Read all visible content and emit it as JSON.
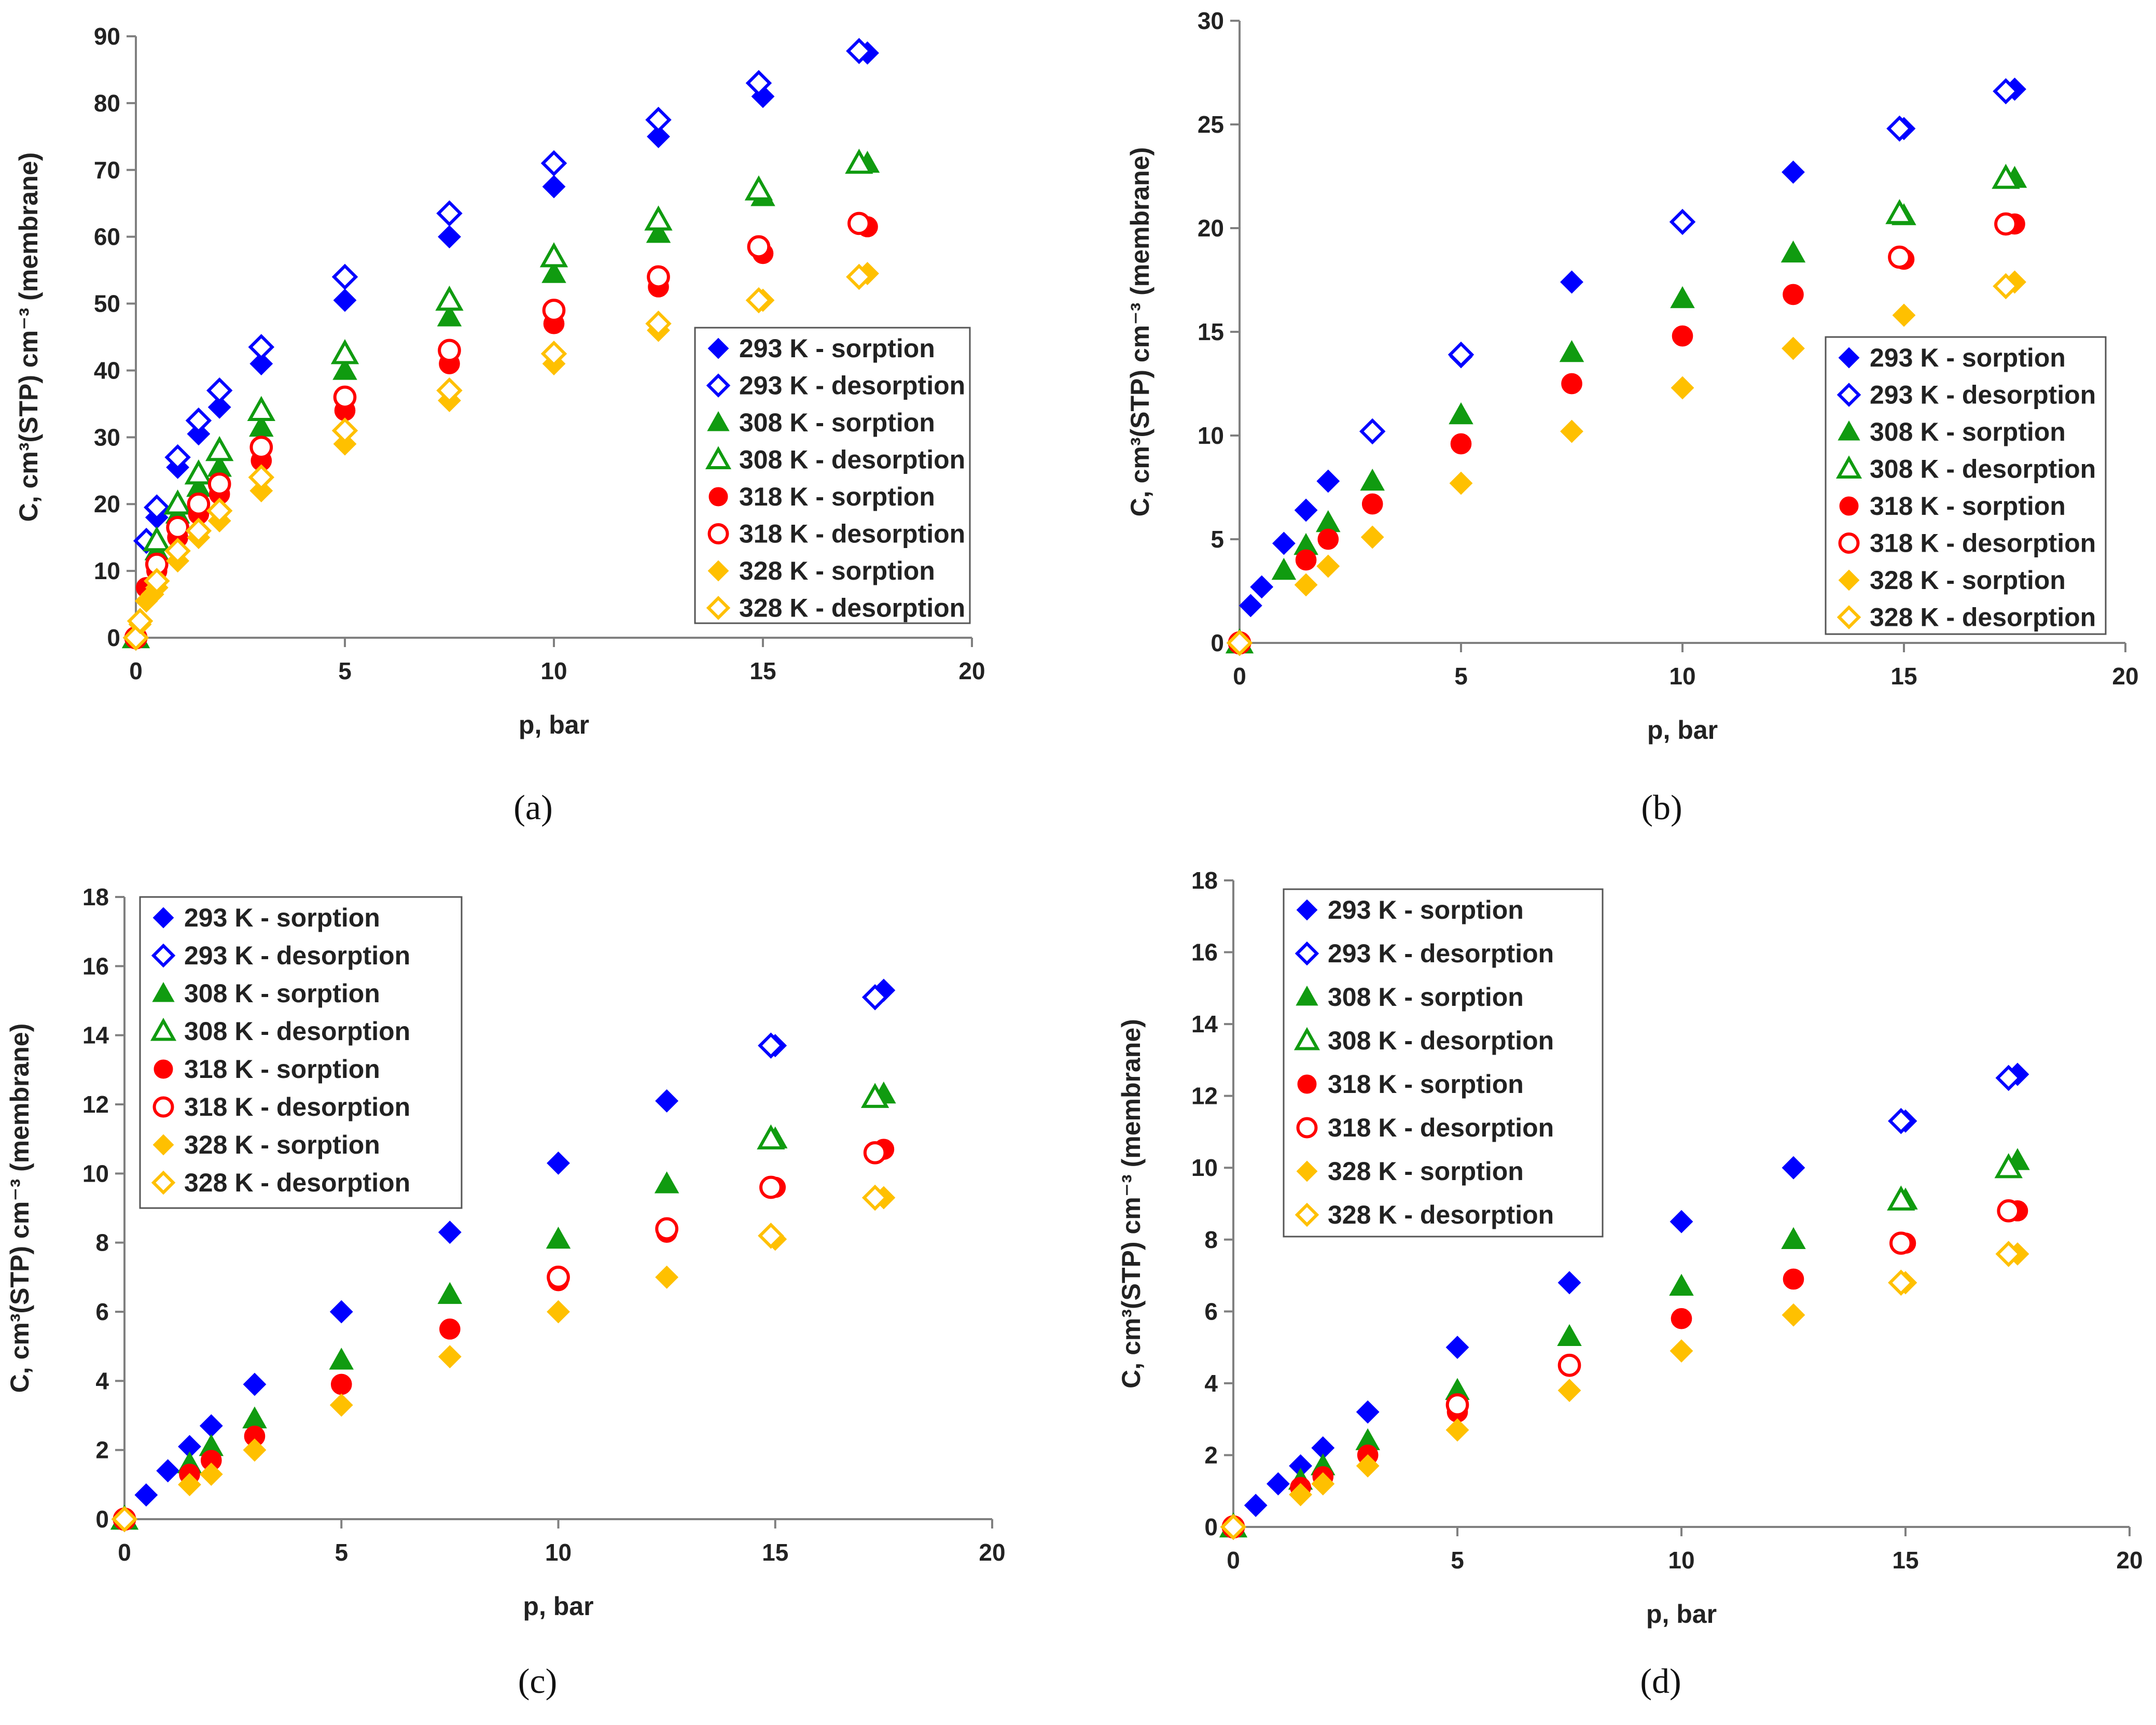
{
  "colors": {
    "293 K": "#0000ff",
    "308 K": "#109b10",
    "318 K": "#ff0000",
    "328 K": "#ffc000",
    "axis": "#808080",
    "text": "#222222"
  },
  "chart_data": [
    {
      "type": "scatter",
      "panel_label": "(a)",
      "xlabel": "p, bar",
      "ylabel": "C, cm³(STP) cm⁻³ (membrane)",
      "xlim": [
        0,
        20
      ],
      "ylim": [
        0,
        90
      ],
      "x_ticks": [
        "0",
        "5",
        "10",
        "15",
        "20"
      ],
      "y_ticks": [
        "0",
        "10",
        "20",
        "30",
        "40",
        "50",
        "60",
        "70",
        "80",
        "90"
      ],
      "legend_position": "right",
      "series": [
        {
          "name": "293 K - sorption",
          "temp": "293 K",
          "marker": "diamond",
          "filled": true,
          "x": [
            0,
            0.5,
            1,
            1.5,
            2,
            3,
            5,
            7.5,
            10,
            12.5,
            15,
            17.5
          ],
          "y": [
            0,
            18,
            25.5,
            30.5,
            34.5,
            41,
            50.5,
            60,
            67.5,
            75,
            81,
            87.5
          ]
        },
        {
          "name": "293 K - desorption",
          "temp": "293 K",
          "marker": "diamond",
          "filled": false,
          "x": [
            0,
            0.25,
            0.5,
            1,
            1.5,
            2,
            3,
            5,
            7.5,
            10,
            12.5,
            14.9,
            17.3
          ],
          "y": [
            0,
            14.5,
            19.5,
            27,
            32.5,
            37,
            43.5,
            54,
            63.5,
            71,
            77.5,
            83,
            87.8
          ]
        },
        {
          "name": "308 K - sorption",
          "temp": "308 K",
          "marker": "triangle",
          "filled": true,
          "x": [
            0,
            0.5,
            1,
            1.5,
            2,
            3,
            5,
            7.5,
            10,
            12.5,
            15,
            17.5
          ],
          "y": [
            0,
            13,
            18.5,
            22.5,
            25.5,
            31.5,
            40,
            48,
            54.5,
            60.5,
            66,
            71
          ]
        },
        {
          "name": "308 K - desorption",
          "temp": "308 K",
          "marker": "triangle",
          "filled": false,
          "x": [
            0,
            0.5,
            1,
            1.5,
            2,
            3,
            5,
            7.5,
            10,
            12.5,
            14.9,
            17.3
          ],
          "y": [
            0,
            14.5,
            20,
            24.5,
            28,
            34,
            42.5,
            50.5,
            57,
            62.5,
            67,
            71
          ]
        },
        {
          "name": "318 K - sorption",
          "temp": "318 K",
          "marker": "circle",
          "filled": true,
          "x": [
            0,
            0.25,
            0.5,
            1,
            1.5,
            2,
            3,
            5,
            7.5,
            10,
            12.5,
            15,
            17.5
          ],
          "y": [
            0,
            7.5,
            10,
            15,
            18.5,
            21.5,
            26.5,
            34,
            41,
            47,
            52.5,
            57.5,
            61.5
          ]
        },
        {
          "name": "318 K - desorption",
          "temp": "318 K",
          "marker": "circle",
          "filled": false,
          "x": [
            0,
            0.5,
            1,
            1.5,
            2,
            3,
            5,
            7.5,
            10,
            12.5,
            14.9,
            17.3
          ],
          "y": [
            0,
            11,
            16.5,
            20,
            23,
            28.5,
            36,
            43,
            49,
            54,
            58.5,
            62
          ]
        },
        {
          "name": "328 K - sorption",
          "temp": "328 K",
          "marker": "diamond",
          "filled": true,
          "x": [
            0,
            0.1,
            0.25,
            0.4,
            0.5,
            1,
            1.5,
            2,
            3,
            5,
            7.5,
            10,
            12.5,
            15,
            17.5
          ],
          "y": [
            0,
            2,
            5.5,
            6.5,
            7.5,
            11.5,
            15,
            17.5,
            22,
            29,
            35.5,
            41,
            46,
            50.5,
            54.5
          ]
        },
        {
          "name": "328 K - desorption",
          "temp": "328 K",
          "marker": "diamond",
          "filled": false,
          "x": [
            0,
            0.1,
            0.5,
            1,
            1.5,
            2,
            3,
            5,
            7.5,
            10,
            12.5,
            14.9,
            17.3
          ],
          "y": [
            0,
            2.5,
            8.5,
            13,
            16,
            19,
            24,
            31,
            37,
            42.5,
            47,
            50.5,
            54
          ]
        }
      ]
    },
    {
      "type": "scatter",
      "panel_label": "(b)",
      "xlabel": "p, bar",
      "ylabel": "C, cm³(STP) cm⁻³ (membrane)",
      "xlim": [
        0,
        20
      ],
      "ylim": [
        0,
        30
      ],
      "x_ticks": [
        "0",
        "5",
        "10",
        "15",
        "20"
      ],
      "y_ticks": [
        "0",
        "5",
        "10",
        "15",
        "20",
        "25",
        "30"
      ],
      "legend_position": "right",
      "series": [
        {
          "name": "293 K - sorption",
          "temp": "293 K",
          "marker": "diamond",
          "filled": true,
          "x": [
            0,
            0.25,
            0.5,
            1,
            1.5,
            2,
            3,
            5,
            7.5,
            10,
            12.5,
            15,
            17.5
          ],
          "y": [
            0,
            1.8,
            2.7,
            4.8,
            6.4,
            7.8,
            10.2,
            13.8,
            17.4,
            20.3,
            22.7,
            24.8,
            26.7
          ]
        },
        {
          "name": "293 K - desorption",
          "temp": "293 K",
          "marker": "diamond",
          "filled": false,
          "x": [
            0,
            3,
            5,
            10,
            14.9,
            17.3
          ],
          "y": [
            0,
            10.2,
            13.9,
            20.3,
            24.8,
            26.6
          ]
        },
        {
          "name": "308 K - sorption",
          "temp": "308 K",
          "marker": "triangle",
          "filled": true,
          "x": [
            0,
            1,
            1.5,
            2,
            3,
            5,
            7.5,
            10,
            12.5,
            15,
            17.5
          ],
          "y": [
            0,
            3.5,
            4.7,
            5.8,
            7.8,
            11,
            14,
            16.6,
            18.8,
            20.6,
            22.4
          ]
        },
        {
          "name": "308 K - desorption",
          "temp": "308 K",
          "marker": "triangle",
          "filled": false,
          "x": [
            0,
            14.9,
            17.3
          ],
          "y": [
            0,
            20.7,
            22.4
          ]
        },
        {
          "name": "318 K - sorption",
          "temp": "318 K",
          "marker": "circle",
          "filled": true,
          "x": [
            0,
            1.5,
            2,
            3,
            5,
            7.5,
            10,
            12.5,
            15,
            17.5
          ],
          "y": [
            0,
            4,
            5,
            6.7,
            9.6,
            12.5,
            14.8,
            16.8,
            18.5,
            20.2
          ]
        },
        {
          "name": "318 K - desorption",
          "temp": "318 K",
          "marker": "circle",
          "filled": false,
          "x": [
            0,
            14.9,
            17.3
          ],
          "y": [
            0,
            18.6,
            20.2
          ]
        },
        {
          "name": "328 K - sorption",
          "temp": "328 K",
          "marker": "diamond",
          "filled": true,
          "x": [
            0,
            1.5,
            2,
            3,
            5,
            7.5,
            10,
            12.5,
            15,
            17.5
          ],
          "y": [
            0,
            2.8,
            3.7,
            5.1,
            7.7,
            10.2,
            12.3,
            14.2,
            15.8,
            17.4
          ]
        },
        {
          "name": "328 K - desorption",
          "temp": "328 K",
          "marker": "diamond",
          "filled": false,
          "x": [
            0,
            17.3
          ],
          "y": [
            0,
            17.2
          ]
        }
      ]
    },
    {
      "type": "scatter",
      "panel_label": "(c)",
      "xlabel": "p, bar",
      "ylabel": "C, cm³(STP) cm⁻³ (membrane)",
      "xlim": [
        0,
        20
      ],
      "ylim": [
        0,
        18
      ],
      "x_ticks": [
        "0",
        "5",
        "10",
        "15",
        "20"
      ],
      "y_ticks": [
        "0",
        "2",
        "4",
        "6",
        "8",
        "10",
        "12",
        "14",
        "16",
        "18"
      ],
      "legend_position": "top-left",
      "series": [
        {
          "name": "293 K - sorption",
          "temp": "293 K",
          "marker": "diamond",
          "filled": true,
          "x": [
            0,
            0.5,
            1,
            1.5,
            2,
            3,
            5,
            7.5,
            10,
            12.5,
            15,
            17.5
          ],
          "y": [
            0,
            0.7,
            1.4,
            2.1,
            2.7,
            3.9,
            6,
            8.3,
            10.3,
            12.1,
            13.7,
            15.3
          ]
        },
        {
          "name": "293 K - desorption",
          "temp": "293 K",
          "marker": "diamond",
          "filled": false,
          "x": [
            0,
            14.9,
            17.3
          ],
          "y": [
            0,
            13.7,
            15.1
          ]
        },
        {
          "name": "308 K - sorption",
          "temp": "308 K",
          "marker": "triangle",
          "filled": true,
          "x": [
            0,
            1.5,
            2,
            3,
            5,
            7.5,
            10,
            12.5,
            15,
            17.5
          ],
          "y": [
            0,
            1.6,
            2.1,
            2.9,
            4.6,
            6.5,
            8.1,
            9.7,
            11,
            12.3
          ]
        },
        {
          "name": "308 K - desorption",
          "temp": "308 K",
          "marker": "triangle",
          "filled": false,
          "x": [
            0,
            14.9,
            17.3
          ],
          "y": [
            0,
            11,
            12.2
          ]
        },
        {
          "name": "318 K - sorption",
          "temp": "318 K",
          "marker": "circle",
          "filled": true,
          "x": [
            0,
            1.5,
            2,
            3,
            5,
            7.5,
            10,
            12.5,
            15,
            17.5
          ],
          "y": [
            0,
            1.3,
            1.7,
            2.4,
            3.9,
            5.5,
            6.9,
            8.3,
            9.6,
            10.7
          ]
        },
        {
          "name": "318 K - desorption",
          "temp": "318 K",
          "marker": "circle",
          "filled": false,
          "x": [
            0,
            10,
            12.5,
            14.9,
            17.3
          ],
          "y": [
            0,
            7,
            8.4,
            9.6,
            10.6
          ]
        },
        {
          "name": "328 K - sorption",
          "temp": "328 K",
          "marker": "diamond",
          "filled": true,
          "x": [
            0,
            1.5,
            2,
            3,
            5,
            7.5,
            10,
            12.5,
            15,
            17.5
          ],
          "y": [
            0,
            1,
            1.3,
            2,
            3.3,
            4.7,
            6,
            7,
            8.1,
            9.3
          ]
        },
        {
          "name": "328 K - desorption",
          "temp": "328 K",
          "marker": "diamond",
          "filled": false,
          "x": [
            0,
            14.9,
            17.3
          ],
          "y": [
            0,
            8.2,
            9.3
          ]
        }
      ]
    },
    {
      "type": "scatter",
      "panel_label": "(d)",
      "xlabel": "p, bar",
      "ylabel": "C, cm³(STP) cm⁻³ (membrane)",
      "xlim": [
        0,
        20
      ],
      "ylim": [
        0,
        18
      ],
      "x_ticks": [
        "0",
        "5",
        "10",
        "15",
        "20"
      ],
      "y_ticks": [
        "0",
        "2",
        "4",
        "6",
        "8",
        "10",
        "12",
        "14",
        "16",
        "18"
      ],
      "legend_position": "top-left",
      "series": [
        {
          "name": "293 K - sorption",
          "temp": "293 K",
          "marker": "diamond",
          "filled": true,
          "x": [
            0,
            0.5,
            1,
            1.5,
            2,
            3,
            5,
            7.5,
            10,
            12.5,
            15,
            17.5
          ],
          "y": [
            0,
            0.6,
            1.2,
            1.7,
            2.2,
            3.2,
            5,
            6.8,
            8.5,
            10,
            11.3,
            12.6
          ]
        },
        {
          "name": "293 K - desorption",
          "temp": "293 K",
          "marker": "diamond",
          "filled": false,
          "x": [
            0,
            14.9,
            17.3
          ],
          "y": [
            0,
            11.3,
            12.5
          ]
        },
        {
          "name": "308 K - sorption",
          "temp": "308 K",
          "marker": "triangle",
          "filled": true,
          "x": [
            0,
            1.5,
            2,
            3,
            5,
            7.5,
            10,
            12.5,
            15,
            17.5
          ],
          "y": [
            0,
            1.3,
            1.7,
            2.4,
            3.8,
            5.3,
            6.7,
            8,
            9.1,
            10.2
          ]
        },
        {
          "name": "308 K - desorption",
          "temp": "308 K",
          "marker": "triangle",
          "filled": false,
          "x": [
            0,
            14.9,
            17.3
          ],
          "y": [
            0,
            9.1,
            10
          ]
        },
        {
          "name": "318 K - sorption",
          "temp": "318 K",
          "marker": "circle",
          "filled": true,
          "x": [
            0,
            1.5,
            2,
            3,
            5,
            7.5,
            10,
            12.5,
            15,
            17.5
          ],
          "y": [
            0,
            1.1,
            1.4,
            2,
            3.2,
            4.5,
            5.8,
            6.9,
            7.9,
            8.8
          ]
        },
        {
          "name": "318 K - desorption",
          "temp": "318 K",
          "marker": "circle",
          "filled": false,
          "x": [
            0,
            5,
            7.5,
            14.9,
            17.3
          ],
          "y": [
            0,
            3.4,
            4.5,
            7.9,
            8.8
          ]
        },
        {
          "name": "328 K - sorption",
          "temp": "328 K",
          "marker": "diamond",
          "filled": true,
          "x": [
            0,
            1.5,
            2,
            3,
            5,
            7.5,
            10,
            12.5,
            15,
            17.5
          ],
          "y": [
            0,
            0.9,
            1.2,
            1.7,
            2.7,
            3.8,
            4.9,
            5.9,
            6.8,
            7.6
          ]
        },
        {
          "name": "328 K - desorption",
          "temp": "328 K",
          "marker": "diamond",
          "filled": false,
          "x": [
            0,
            14.9,
            17.3
          ],
          "y": [
            0,
            6.8,
            7.6
          ]
        }
      ]
    }
  ]
}
